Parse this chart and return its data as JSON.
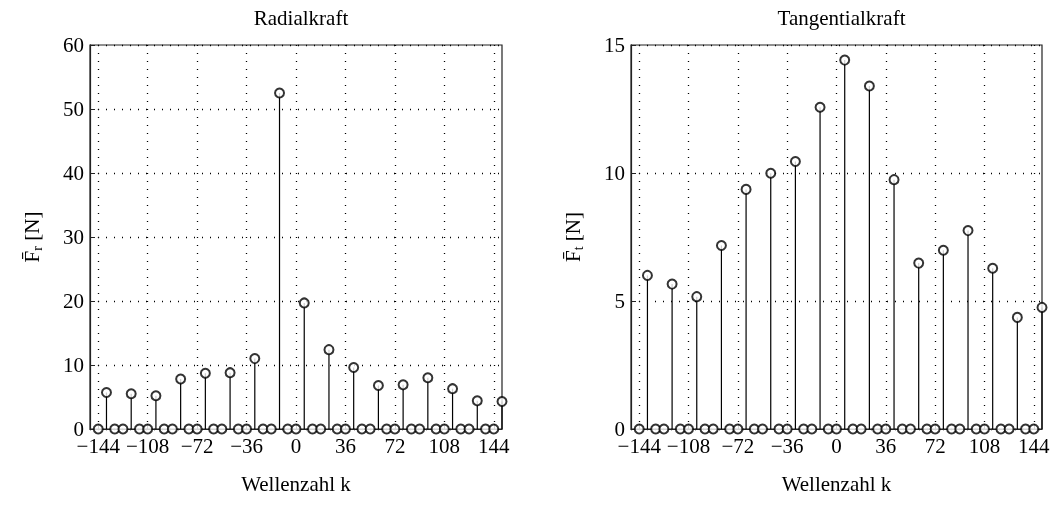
{
  "chart_data": [
    {
      "type": "lollipop",
      "title": "Radialkraft",
      "xlabel": "Wellenzahl k",
      "ylabel": "F̄$_{r}$ [N]",
      "x": [
        -144,
        -138,
        -132,
        -126,
        -120,
        -114,
        -108,
        -102,
        -96,
        -90,
        -84,
        -78,
        -72,
        -66,
        -60,
        -54,
        -48,
        -42,
        -36,
        -30,
        -24,
        -18,
        -12,
        -6,
        0,
        6,
        12,
        18,
        24,
        30,
        36,
        42,
        48,
        54,
        60,
        66,
        72,
        78,
        84,
        90,
        96,
        102,
        108,
        114,
        120,
        126,
        132,
        138,
        144,
        150
      ],
      "series": [
        {
          "color": "#000000",
          "values": [
            0,
            5.7,
            0,
            0,
            5.5,
            0,
            0,
            5.2,
            0,
            0,
            7.8,
            0,
            0,
            8.7,
            0,
            0,
            8.8,
            0,
            0,
            11.0,
            0,
            0,
            52.5,
            0,
            0,
            19.7,
            0,
            0,
            12.4,
            0,
            0,
            9.6,
            0,
            0,
            6.8,
            0,
            0,
            6.9,
            0,
            0,
            8.0,
            0,
            0,
            6.3,
            0,
            0,
            4.4,
            0,
            0,
            4.3
          ]
        }
      ],
      "xlim": [
        -150,
        150
      ],
      "xticks": [
        {
          "value": -144,
          "label": "−144"
        },
        {
          "value": -108,
          "label": "−108"
        },
        {
          "value": -72,
          "label": "−72"
        },
        {
          "value": -36,
          "label": "−36"
        },
        0,
        36,
        72,
        108,
        144
      ],
      "ylim": [
        0,
        60
      ],
      "yticks": [
        0,
        10,
        20,
        30,
        40,
        50,
        60
      ],
      "grid": true,
      "marker": "circle",
      "line_style": "solid"
    },
    {
      "type": "lollipop",
      "title": "Tangentialkraft",
      "xlabel": "Wellenzahl k",
      "ylabel": "F̄$_{t}$ [N]",
      "x": [
        -144,
        -138,
        -132,
        -126,
        -120,
        -114,
        -108,
        -102,
        -96,
        -90,
        -84,
        -78,
        -72,
        -66,
        -60,
        -54,
        -48,
        -42,
        -36,
        -30,
        -24,
        -18,
        -12,
        -6,
        0,
        6,
        12,
        18,
        24,
        30,
        36,
        42,
        48,
        54,
        60,
        66,
        72,
        78,
        84,
        90,
        96,
        102,
        108,
        114,
        120,
        126,
        132,
        138,
        144,
        150
      ],
      "series": [
        {
          "color": "#000000",
          "values": [
            0,
            6.0,
            0,
            0,
            5.66,
            0,
            0,
            5.17,
            0,
            0,
            7.17,
            0,
            0,
            9.36,
            0,
            0,
            9.99,
            0,
            0,
            10.45,
            0,
            0,
            12.57,
            0,
            0,
            14.41,
            0,
            0,
            13.4,
            0,
            0,
            9.74,
            0,
            0,
            6.48,
            0,
            0,
            6.98,
            0,
            0,
            7.75,
            0,
            0,
            6.28,
            0,
            0,
            4.36,
            0,
            0,
            4.75
          ]
        }
      ],
      "xlim": [
        -150,
        150
      ],
      "xticks": [
        {
          "value": -144,
          "label": "−144"
        },
        {
          "value": -108,
          "label": "−108"
        },
        {
          "value": -72,
          "label": "−72"
        },
        {
          "value": -36,
          "label": "−36"
        },
        0,
        36,
        72,
        108,
        144
      ],
      "ylim": [
        0,
        15
      ],
      "yticks": [
        0,
        5,
        10,
        15
      ],
      "grid": true,
      "marker": "circle",
      "line_style": "solid"
    }
  ]
}
